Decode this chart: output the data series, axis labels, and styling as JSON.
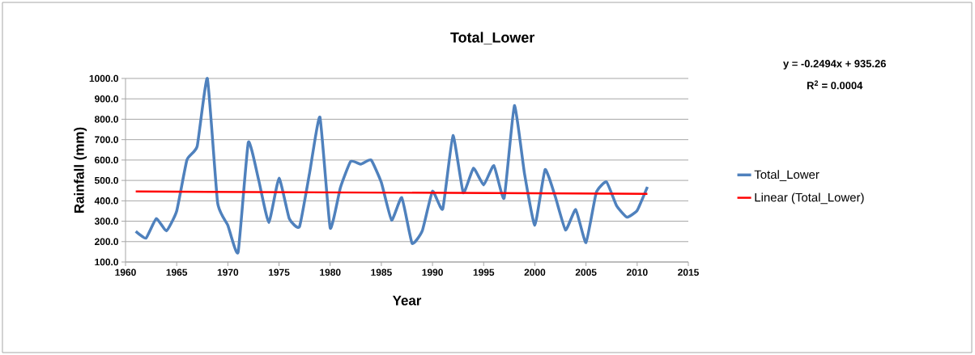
{
  "chart_data": {
    "type": "line",
    "title": "Total_Lower",
    "xlabel": "Year",
    "ylabel": "Rainfall (mm)",
    "annotations": [
      "y = -0.2494x + 935.26",
      "R$^{2}$ = 0.0004"
    ],
    "xlim": [
      1960,
      2015
    ],
    "xticks": [
      1960,
      1965,
      1970,
      1975,
      1980,
      1985,
      1990,
      1995,
      2000,
      2005,
      2010,
      2015
    ],
    "ylim": [
      100,
      1000
    ],
    "yticks": [
      {
        "value": 100,
        "label": "100.0"
      },
      {
        "value": 200,
        "label": "200.0"
      },
      {
        "value": 300,
        "label": "300.0"
      },
      {
        "value": 400,
        "label": "400.0"
      },
      {
        "value": 500,
        "label": "500.0"
      },
      {
        "value": 600,
        "label": "600.0"
      },
      {
        "value": 700,
        "label": "700.0"
      },
      {
        "value": 800,
        "label": "800.0"
      },
      {
        "value": 900,
        "label": "900.0"
      },
      {
        "value": 1000,
        "label": "1000.0"
      }
    ],
    "grid": "y",
    "legend": "right",
    "series": [
      {
        "name": "Total_Lower",
        "color": "#4f81bd",
        "x": [
          1961,
          1962,
          1963,
          1964,
          1965,
          1966,
          1967,
          1968,
          1969,
          1970,
          1971,
          1972,
          1973,
          1974,
          1975,
          1976,
          1977,
          1978,
          1979,
          1980,
          1981,
          1982,
          1983,
          1984,
          1985,
          1986,
          1987,
          1988,
          1989,
          1990,
          1991,
          1992,
          1993,
          1994,
          1995,
          1996,
          1997,
          1998,
          1999,
          2000,
          2001,
          2002,
          2003,
          2004,
          2005,
          2006,
          2007,
          2008,
          2009,
          2010,
          2011
        ],
        "values": [
          250,
          217,
          313,
          253,
          350,
          600,
          667,
          1000,
          390,
          280,
          147,
          687,
          505,
          293,
          511,
          313,
          273,
          540,
          810,
          267,
          465,
          593,
          580,
          600,
          490,
          305,
          416,
          192,
          253,
          447,
          360,
          720,
          440,
          560,
          478,
          573,
          413,
          867,
          530,
          280,
          553,
          420,
          257,
          357,
          195,
          440,
          493,
          375,
          320,
          353,
          468
        ]
      },
      {
        "name": "Linear (Total_Lower)",
        "color": "#ff0000",
        "x": [
          1961,
          2011
        ],
        "values": [
          446,
          434
        ]
      }
    ]
  }
}
